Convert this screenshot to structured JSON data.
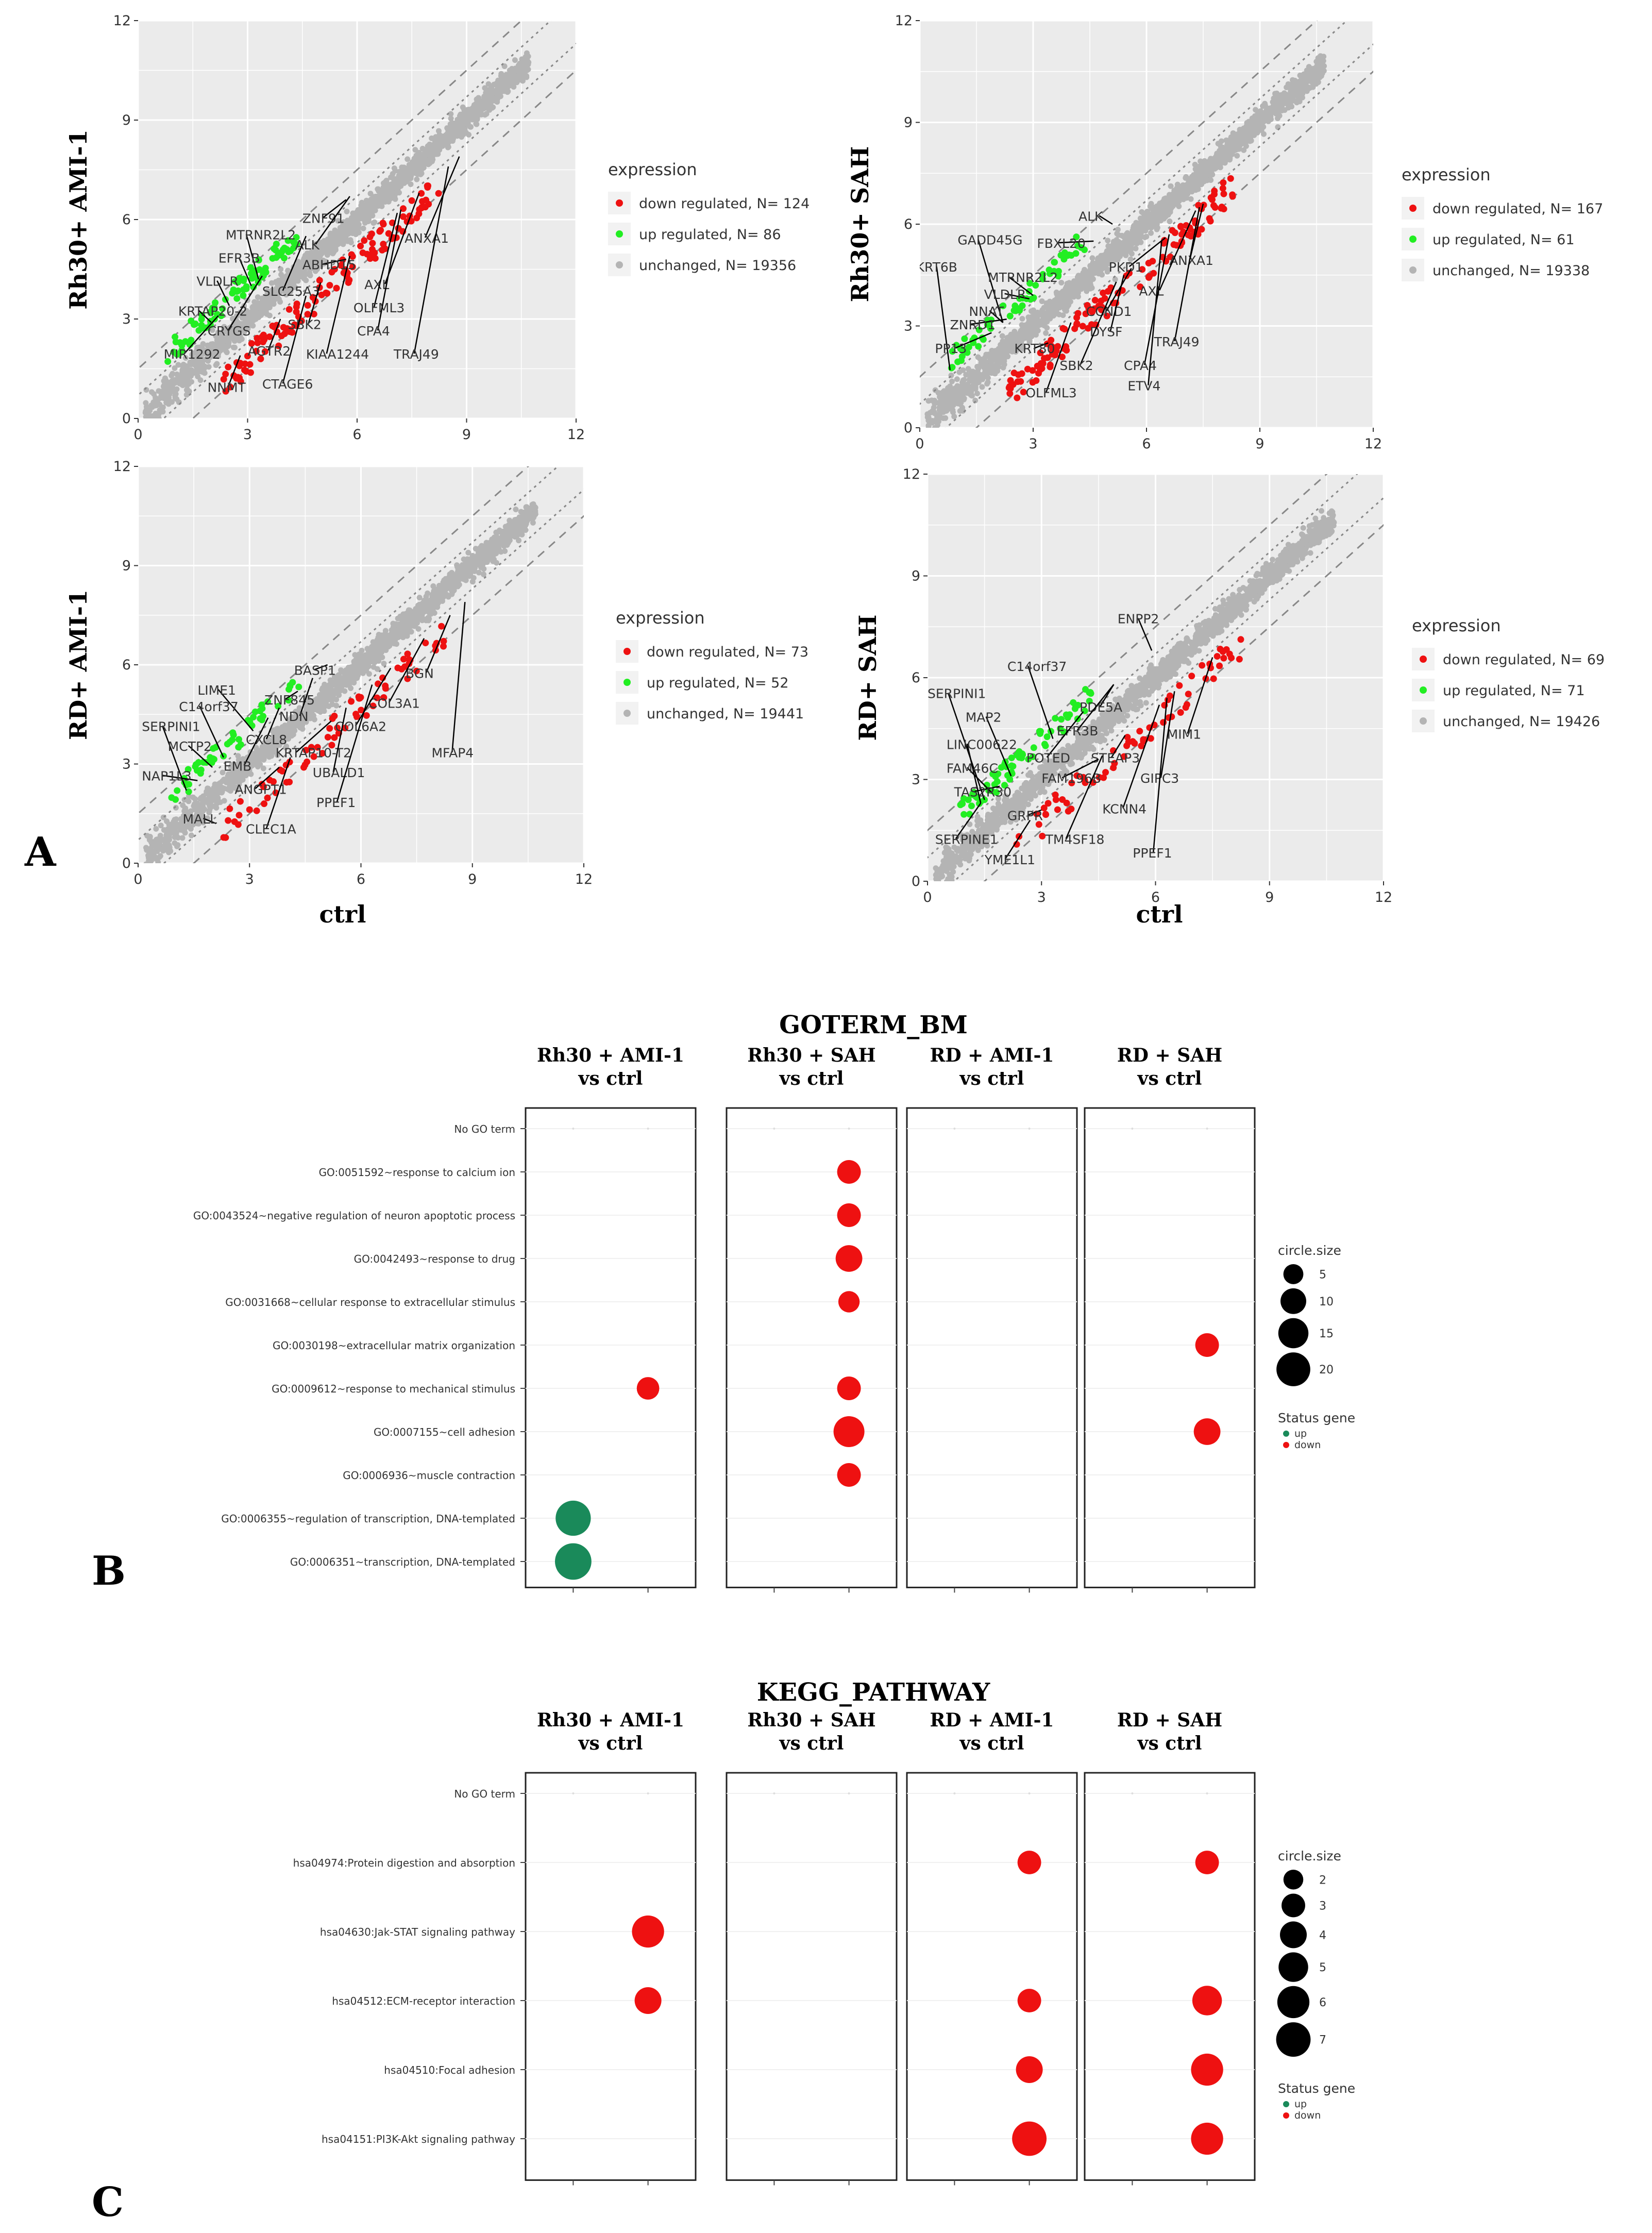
{
  "panel_labels": {
    "a": "A",
    "b": "B",
    "c": "C"
  },
  "scatter_xlabel": "ctrl",
  "chart_data": [
    {
      "type": "scatter",
      "id": "scatter1",
      "ylabel": "Rh30+ AMI-1",
      "xlabel": "ctrl",
      "xlim": [
        0,
        12
      ],
      "ylim": [
        0,
        12
      ],
      "ticks": [
        "0",
        "3",
        "6",
        "9",
        "12"
      ],
      "legend_title": "expression",
      "legend": [
        "down regulated, N= 124",
        "up regulated, N= 86",
        "unchanged, N= 19356"
      ],
      "labels": [
        {
          "text": "MTRNR2L2",
          "x": 2.4,
          "y": 5.4,
          "color": "down"
        },
        {
          "text": "ZNF91",
          "x": 4.5,
          "y": 5.9
        },
        {
          "text": "ALK",
          "x": 4.3,
          "y": 5.1
        },
        {
          "text": "EFR3B",
          "x": 2.2,
          "y": 4.7
        },
        {
          "text": "ABHD15",
          "x": 4.5,
          "y": 4.5
        },
        {
          "text": "ANXA1",
          "x": 7.3,
          "y": 5.3
        },
        {
          "text": "VLDLR",
          "x": 1.6,
          "y": 4.0
        },
        {
          "text": "SLC25A3",
          "x": 3.4,
          "y": 3.7
        },
        {
          "text": "AXL",
          "x": 6.2,
          "y": 3.9
        },
        {
          "text": "KRTAP20-2",
          "x": 1.1,
          "y": 3.1
        },
        {
          "text": "OLFML3",
          "x": 5.9,
          "y": 3.2
        },
        {
          "text": "CRYGS",
          "x": 1.9,
          "y": 2.5
        },
        {
          "text": "SBK2",
          "x": 4.1,
          "y": 2.7
        },
        {
          "text": "CPA4",
          "x": 6.0,
          "y": 2.5
        },
        {
          "text": "MIR1292",
          "x": 0.7,
          "y": 1.8
        },
        {
          "text": "AGTR2",
          "x": 3.0,
          "y": 1.9
        },
        {
          "text": "KIAA1244",
          "x": 4.6,
          "y": 1.8
        },
        {
          "text": "TRAJ49",
          "x": 7.0,
          "y": 1.8
        },
        {
          "text": "NNMT",
          "x": 1.9,
          "y": 0.8
        },
        {
          "text": "CTAGE6",
          "x": 3.4,
          "y": 0.9
        }
      ],
      "counts": {
        "down": 124,
        "up": 86
      }
    },
    {
      "type": "scatter",
      "id": "scatter2",
      "ylabel": "Rh30+ SAH",
      "xlabel": "",
      "xlim": [
        0,
        12
      ],
      "ylim": [
        0,
        12
      ],
      "ticks": [
        "0",
        "3",
        "6",
        "9",
        "12"
      ],
      "legend_title": "expression",
      "legend": [
        "down regulated, N= 167",
        "up regulated, N= 61",
        "unchanged, N= 19338"
      ],
      "labels": [
        {
          "text": "ALK",
          "x": 4.2,
          "y": 6.1
        },
        {
          "text": "GADD45G",
          "x": 1.0,
          "y": 5.4
        },
        {
          "text": "FBXL20",
          "x": 3.1,
          "y": 5.3
        },
        {
          "text": "KRT6B",
          "x": -0.1,
          "y": 4.6
        },
        {
          "text": "MTRNR2L2",
          "x": 1.8,
          "y": 4.3
        },
        {
          "text": "PKD1",
          "x": 5.0,
          "y": 4.6
        },
        {
          "text": "ANXA1",
          "x": 6.6,
          "y": 4.8
        },
        {
          "text": "VLDLR",
          "x": 1.7,
          "y": 3.8
        },
        {
          "text": "AXL",
          "x": 5.8,
          "y": 3.9
        },
        {
          "text": "NNAT",
          "x": 1.3,
          "y": 3.3
        },
        {
          "text": "CCND1",
          "x": 4.4,
          "y": 3.3
        },
        {
          "text": "ZNRD1",
          "x": 0.8,
          "y": 2.9
        },
        {
          "text": "DYSF",
          "x": 4.5,
          "y": 2.7
        },
        {
          "text": "TRAJ49",
          "x": 6.2,
          "y": 2.4
        },
        {
          "text": "PP13",
          "x": 0.4,
          "y": 2.2
        },
        {
          "text": "KRT80",
          "x": 2.5,
          "y": 2.2
        },
        {
          "text": "CPA4",
          "x": 5.4,
          "y": 1.7
        },
        {
          "text": "SBK2",
          "x": 3.7,
          "y": 1.7
        },
        {
          "text": "ETV4",
          "x": 5.5,
          "y": 1.1
        },
        {
          "text": "OLFML3",
          "x": 2.8,
          "y": 0.9
        }
      ],
      "counts": {
        "down": 167,
        "up": 61
      }
    },
    {
      "type": "scatter",
      "id": "scatter3",
      "ylabel": "RD+ AMI-1",
      "xlabel": "ctrl",
      "xlim": [
        0,
        12
      ],
      "ylim": [
        0,
        12
      ],
      "ticks": [
        "0",
        "3",
        "6",
        "9",
        "12"
      ],
      "legend_title": "expression",
      "legend": [
        "down regulated, N= 73",
        "up regulated, N= 52",
        "unchanged, N= 19441"
      ],
      "labels": [
        {
          "text": "BASP1",
          "x": 4.2,
          "y": 5.7
        },
        {
          "text": "BGN",
          "x": 7.2,
          "y": 5.6
        },
        {
          "text": "LIME1",
          "x": 1.6,
          "y": 5.1
        },
        {
          "text": "ZNF845",
          "x": 3.4,
          "y": 4.8
        },
        {
          "text": "C14orf37",
          "x": 1.1,
          "y": 4.6
        },
        {
          "text": "COL3A1",
          "x": 6.2,
          "y": 4.7
        },
        {
          "text": "NDN",
          "x": 3.8,
          "y": 4.3
        },
        {
          "text": "SERPINI1",
          "x": 0.1,
          "y": 4.0
        },
        {
          "text": "COL6A2",
          "x": 5.3,
          "y": 4.0
        },
        {
          "text": "CXCL8",
          "x": 2.9,
          "y": 3.6
        },
        {
          "text": "MCTP2",
          "x": 0.8,
          "y": 3.4
        },
        {
          "text": "KRTAP10-T2",
          "x": 3.7,
          "y": 3.2
        },
        {
          "text": "MFAP4",
          "x": 7.9,
          "y": 3.2
        },
        {
          "text": "EMB",
          "x": 2.3,
          "y": 2.8
        },
        {
          "text": "NAP1L3",
          "x": 0.1,
          "y": 2.5
        },
        {
          "text": "UBALD1",
          "x": 4.7,
          "y": 2.6
        },
        {
          "text": "ANGPT1",
          "x": 2.6,
          "y": 2.1
        },
        {
          "text": "PPEF1",
          "x": 4.8,
          "y": 1.7
        },
        {
          "text": "MALL",
          "x": 1.2,
          "y": 1.2
        },
        {
          "text": "CLEC1A",
          "x": 2.9,
          "y": 0.9
        }
      ],
      "counts": {
        "down": 73,
        "up": 52
      }
    },
    {
      "type": "scatter",
      "id": "scatter4",
      "ylabel": "RD+ SAH",
      "xlabel": "",
      "xlim": [
        0,
        12
      ],
      "ylim": [
        0,
        12
      ],
      "ticks": [
        "0",
        "3",
        "6",
        "9",
        "12"
      ],
      "legend_title": "expression",
      "legend": [
        "down regulated, N= 69",
        "up regulated, N= 71",
        "unchanged, N= 19426"
      ],
      "labels": [
        {
          "text": "ENPP2",
          "x": 5.0,
          "y": 7.6
        },
        {
          "text": "C14orf37",
          "x": 2.1,
          "y": 6.2
        },
        {
          "text": "SERPINI1",
          "x": 0.0,
          "y": 5.4
        },
        {
          "text": "PDE5A",
          "x": 4.0,
          "y": 5.0
        },
        {
          "text": "MAP2",
          "x": 1.0,
          "y": 4.7
        },
        {
          "text": "EFR3B",
          "x": 3.4,
          "y": 4.3
        },
        {
          "text": "LINC00622",
          "x": 0.5,
          "y": 3.9
        },
        {
          "text": "MIM1",
          "x": 6.3,
          "y": 4.2
        },
        {
          "text": "POTED",
          "x": 2.6,
          "y": 3.5
        },
        {
          "text": "STEAP3",
          "x": 4.3,
          "y": 3.5
        },
        {
          "text": "FAM46C",
          "x": 0.5,
          "y": 3.2
        },
        {
          "text": "FAM196B",
          "x": 3.0,
          "y": 2.9
        },
        {
          "text": "GIPC3",
          "x": 5.6,
          "y": 2.9
        },
        {
          "text": "TAS2R30",
          "x": 0.7,
          "y": 2.5
        },
        {
          "text": "KCNN4",
          "x": 4.6,
          "y": 2.0
        },
        {
          "text": "GRPR",
          "x": 2.1,
          "y": 1.8
        },
        {
          "text": "SERPINE1",
          "x": 0.2,
          "y": 1.1
        },
        {
          "text": "TM4SF18",
          "x": 3.1,
          "y": 1.1
        },
        {
          "text": "PPEF1",
          "x": 5.4,
          "y": 0.7
        },
        {
          "text": "YME1L1",
          "x": 1.5,
          "y": 0.5
        }
      ],
      "counts": {
        "down": 69,
        "up": 71
      }
    },
    {
      "type": "scatter",
      "id": "dotplot_go",
      "title": "GOTERM_BM",
      "panels": [
        "Rh30 + AMI-1|vs ctrl",
        "Rh30 + SAH|vs ctrl",
        "RD + AMI-1|vs ctrl",
        "RD + SAH|vs ctrl"
      ],
      "terms": [
        "No GO term",
        "GO:0051592~response to calcium ion",
        "GO:0043524~negative regulation of neuron apoptotic process",
        "GO:0042493~response to drug",
        "GO:0031668~cellular response to extracellular stimulus",
        "GO:0030198~extracellular matrix organization",
        "GO:0009612~response to mechanical stimulus",
        "GO:0007155~cell adhesion",
        "GO:0006936~muscle contraction",
        "GO:0006355~regulation of transcription, DNA-templated",
        "GO:0006351~transcription, DNA-templated"
      ],
      "points": [
        {
          "panel": 1,
          "term": 1,
          "status": "down",
          "size": 8
        },
        {
          "panel": 1,
          "term": 2,
          "status": "down",
          "size": 8
        },
        {
          "panel": 1,
          "term": 3,
          "status": "down",
          "size": 11
        },
        {
          "panel": 1,
          "term": 4,
          "status": "down",
          "size": 6
        },
        {
          "panel": 3,
          "term": 5,
          "status": "down",
          "size": 8
        },
        {
          "panel": 0,
          "term": 6,
          "status": "down",
          "size": 7
        },
        {
          "panel": 1,
          "term": 6,
          "status": "down",
          "size": 8
        },
        {
          "panel": 1,
          "term": 7,
          "status": "down",
          "size": 16
        },
        {
          "panel": 3,
          "term": 7,
          "status": "down",
          "size": 11
        },
        {
          "panel": 1,
          "term": 8,
          "status": "down",
          "size": 8
        },
        {
          "panel": 0,
          "term": 9,
          "status": "up",
          "size": 22
        },
        {
          "panel": 0,
          "term": 10,
          "status": "up",
          "size": 24
        }
      ],
      "size_legend_title": "circle.size",
      "size_legend": [
        5,
        10,
        15,
        20
      ],
      "status_legend_title": "Status gene",
      "status_legend": [
        "up",
        "down"
      ]
    },
    {
      "type": "scatter",
      "id": "dotplot_kegg",
      "title": "KEGG_PATHWAY",
      "panels": [
        "Rh30 + AMI-1|vs ctrl",
        "Rh30 + SAH|vs ctrl",
        "RD + AMI-1|vs ctrl",
        "RD + SAH|vs ctrl"
      ],
      "terms": [
        "No GO term",
        "hsa04974:Protein digestion and absorption",
        "hsa04630:Jak-STAT signaling pathway",
        "hsa04512:ECM-receptor interaction",
        "hsa04510:Focal adhesion",
        "hsa04151:PI3K-Akt signaling pathway"
      ],
      "points": [
        {
          "panel": 2,
          "term": 1,
          "status": "down",
          "size": 3
        },
        {
          "panel": 3,
          "term": 1,
          "status": "down",
          "size": 3
        },
        {
          "panel": 0,
          "term": 2,
          "status": "down",
          "size": 6
        },
        {
          "panel": 0,
          "term": 3,
          "status": "down",
          "size": 4
        },
        {
          "panel": 2,
          "term": 3,
          "status": "down",
          "size": 3
        },
        {
          "panel": 3,
          "term": 3,
          "status": "down",
          "size": 5
        },
        {
          "panel": 2,
          "term": 4,
          "status": "down",
          "size": 4
        },
        {
          "panel": 3,
          "term": 4,
          "status": "down",
          "size": 6
        },
        {
          "panel": 2,
          "term": 5,
          "status": "down",
          "size": 7
        },
        {
          "panel": 3,
          "term": 5,
          "status": "down",
          "size": 6
        }
      ],
      "size_legend_title": "circle.size",
      "size_legend": [
        2,
        3,
        4,
        5,
        6,
        7
      ],
      "status_legend_title": "Status gene",
      "status_legend": [
        "up",
        "down"
      ]
    }
  ],
  "colors": {
    "down": "#ee1111",
    "up": "#22ee22",
    "unchanged": "#b4b4b4",
    "panel_bg": "#ebebeb",
    "dot_up": "#1a8a5a",
    "dot_down": "#ee1111"
  }
}
